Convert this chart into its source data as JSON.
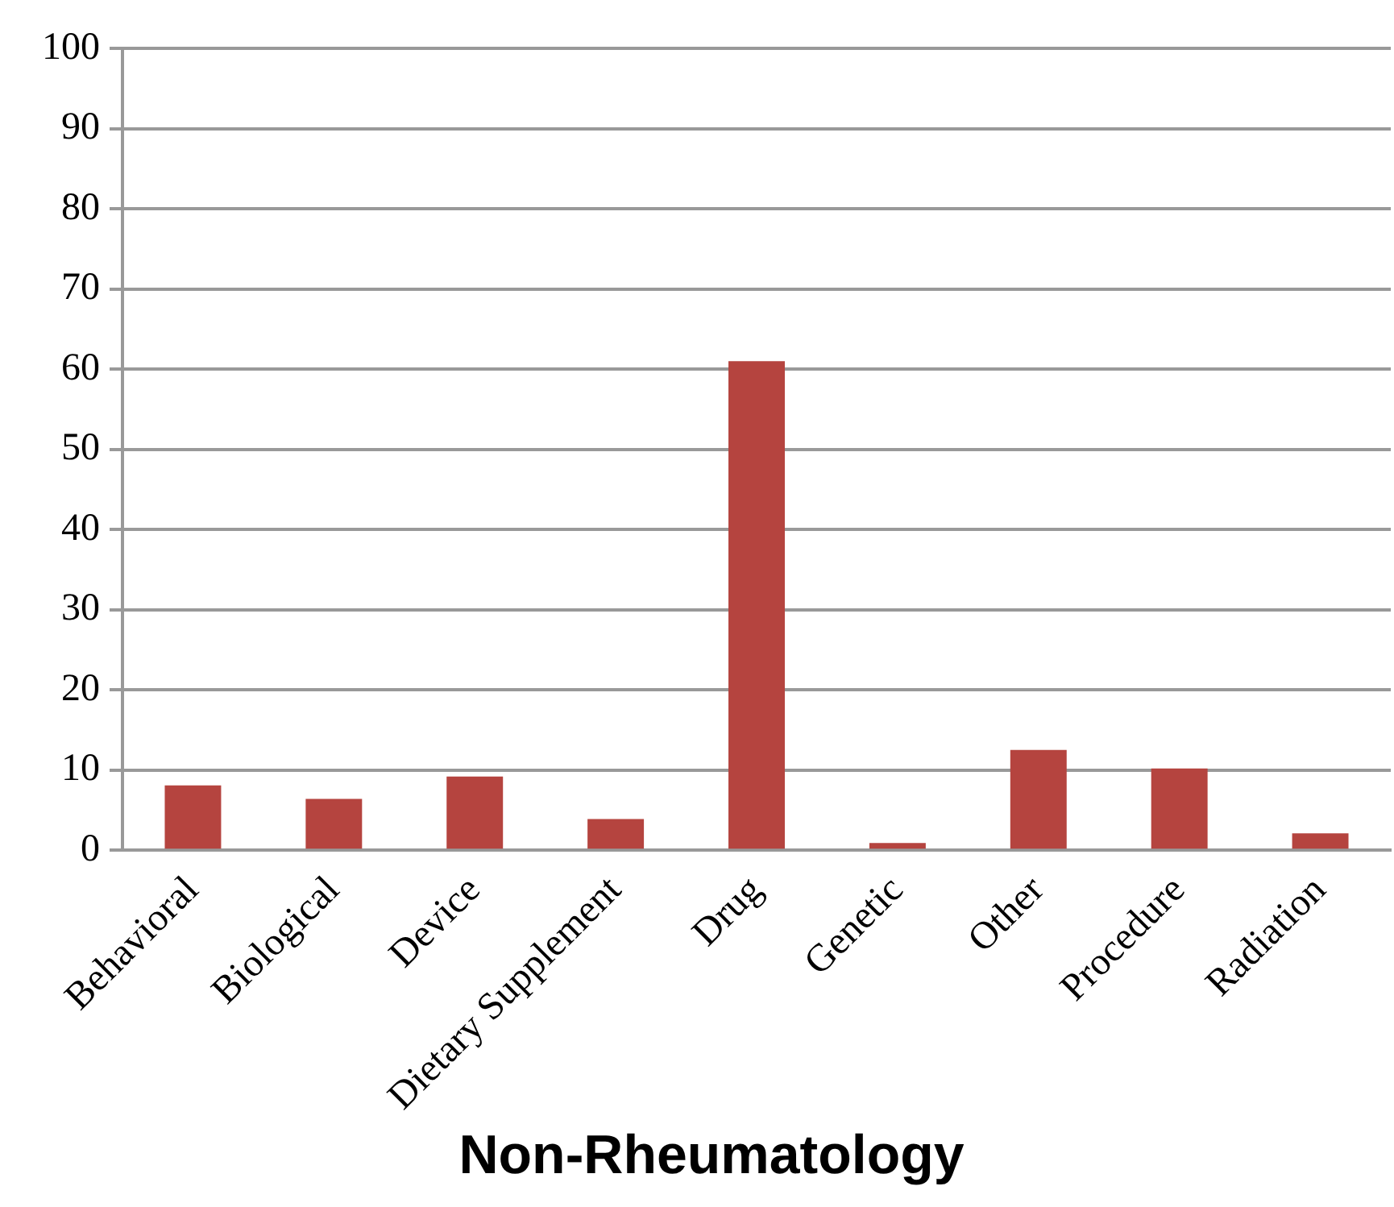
{
  "chart_data": {
    "type": "bar",
    "title": "Non-Rheumatology",
    "categories": [
      "Behavioral",
      "Biological",
      "Device",
      "Dietary Supplement",
      "Drug",
      "Genetic",
      "Other",
      "Procedure",
      "Radiation"
    ],
    "values": [
      8.1,
      6.4,
      9.2,
      3.9,
      61,
      0.9,
      12.5,
      10.2,
      2.1
    ],
    "color": "#b5443f",
    "ylim": [
      0,
      100
    ],
    "yticks": [
      0,
      10,
      20,
      30,
      40,
      50,
      60,
      70,
      80,
      90,
      100
    ],
    "grid": "y",
    "legend": false
  }
}
